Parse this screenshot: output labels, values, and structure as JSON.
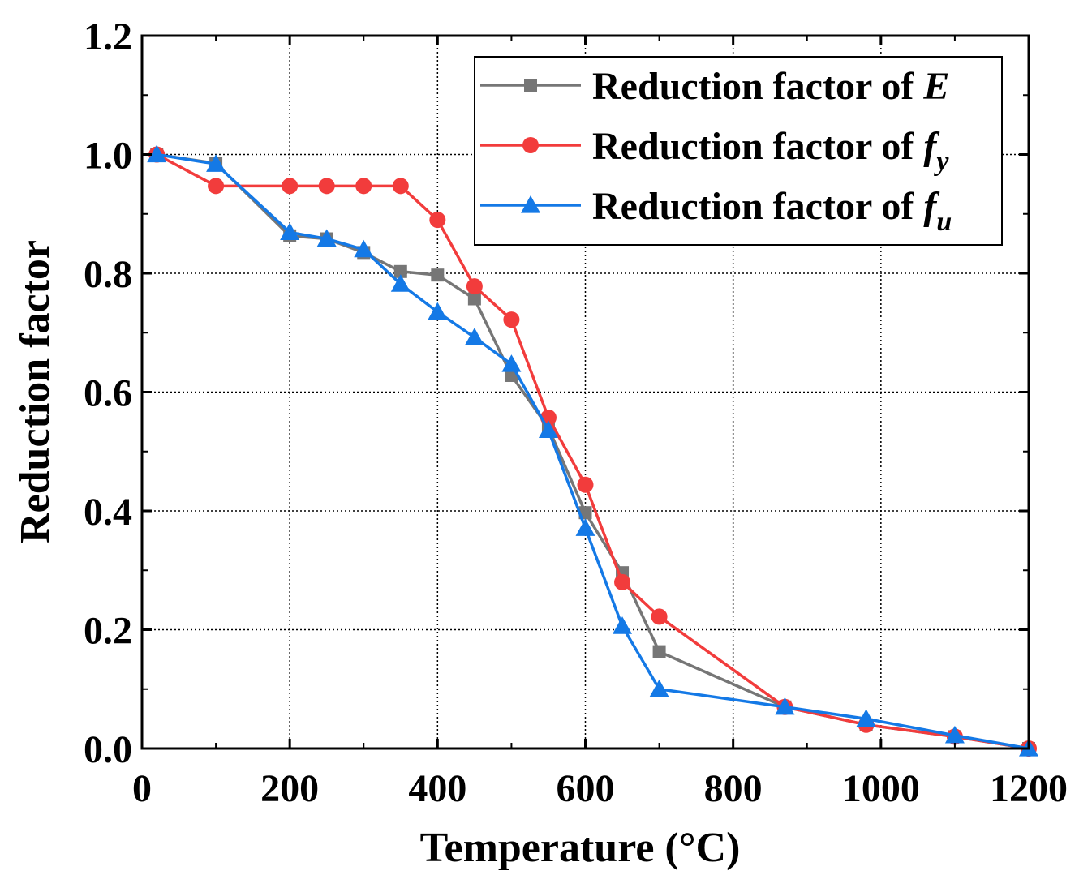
{
  "chart_data": {
    "type": "line",
    "title": "",
    "xlabel": "Temperature (°C)",
    "ylabel": "Reduction factor",
    "xlim": [
      0,
      1200
    ],
    "ylim": [
      0,
      1.2
    ],
    "xticks": [
      "0",
      "200",
      "400",
      "600",
      "800",
      "1000",
      "1200"
    ],
    "yticks": [
      "0.0",
      "0.2",
      "0.4",
      "0.6",
      "0.8",
      "1.0",
      "1.2"
    ],
    "grid": true,
    "legend_position": "top-right",
    "x": [
      20,
      100,
      200,
      250,
      300,
      350,
      400,
      450,
      500,
      550,
      600,
      650,
      700,
      870,
      980,
      1100,
      1200
    ],
    "series": [
      {
        "name": "Reduction factor of E",
        "label_main": "Reduction factor of ",
        "label_symbol": "E",
        "label_sub": "",
        "color": "#767676",
        "marker": "square",
        "values": [
          1.0,
          0.985,
          0.863,
          0.858,
          0.835,
          0.803,
          0.797,
          0.757,
          0.628,
          0.54,
          0.397,
          0.296,
          0.163,
          0.07,
          0.04,
          0.02,
          0.0
        ]
      },
      {
        "name": "Reduction factor of fy",
        "label_main": "Reduction factor of ",
        "label_symbol": "f",
        "label_sub": "y",
        "color": "#f23c3c",
        "marker": "circle",
        "values": [
          1.0,
          0.947,
          0.947,
          0.947,
          0.947,
          0.947,
          0.89,
          0.778,
          0.722,
          0.557,
          0.444,
          0.28,
          0.222,
          0.07,
          0.04,
          0.02,
          0.0
        ]
      },
      {
        "name": "Reduction factor of fu",
        "label_main": "Reduction factor of ",
        "label_symbol": "f",
        "label_sub": "u",
        "color": "#1479e6",
        "marker": "triangle",
        "values": [
          1.0,
          0.984,
          0.869,
          0.858,
          0.84,
          0.782,
          0.735,
          0.692,
          0.647,
          0.536,
          0.371,
          0.206,
          0.1,
          0.07,
          0.05,
          0.022,
          0.0
        ]
      }
    ]
  }
}
